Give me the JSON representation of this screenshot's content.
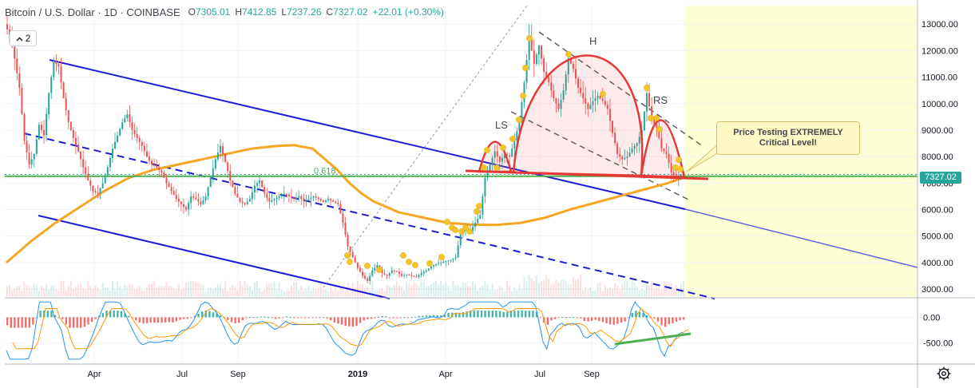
{
  "header": {
    "symbol": "Bitcoin / U.S. Dollar · 1D · COINBASE",
    "open_label": "O",
    "open": "7305.01",
    "high_label": "H",
    "high": "7412.85",
    "low_label": "L",
    "low": "7237.26",
    "close_label": "C",
    "close": "7327.02",
    "change": "+22.01 (+0.30%)"
  },
  "indicator_toggle": {
    "count": "2",
    "icon": "chevron-up-icon"
  },
  "settings": {
    "icon": "gear-icon"
  },
  "colors": {
    "up": "#26a69a",
    "down": "#ef5350",
    "channel": "#1c1cd6",
    "ma": "#f5a623",
    "fib": "#4caf50",
    "pattern": "#e53935",
    "projection_zone": "#ffffd6",
    "macd_line": "#2196f3",
    "signal_line": "#ff9800"
  },
  "annotations": {
    "left_shoulder": "LS",
    "head": "H",
    "right_shoulder": "RS",
    "fib_label": "0.618",
    "callout_line1": "Price Testing EXTREMELY",
    "callout_line2": "Critical Level!"
  },
  "last_price_tag": "7327.02",
  "chart_data": {
    "type": "line",
    "price_axis": {
      "ticks": [
        "13000.00",
        "12000.00",
        "11000.00",
        "10000.00",
        "9000.00",
        "8000.00",
        "7000.00",
        "6000.00",
        "5000.00",
        "4000.00",
        "3000.00"
      ],
      "range": [
        2700,
        13700
      ]
    },
    "indicator_axis": {
      "ticks": [
        "0.00",
        "-500.00"
      ],
      "range": [
        -900,
        350
      ]
    },
    "time_axis": {
      "ticks": [
        "Apr",
        "Jul",
        "Sep",
        "2019",
        "Apr",
        "Jul",
        "Sep"
      ]
    },
    "fib_level": 7260,
    "close_series": [
      [
        0,
        13000
      ],
      [
        4,
        12600
      ],
      [
        8,
        11700
      ],
      [
        12,
        10600
      ],
      [
        16,
        8600
      ],
      [
        20,
        7700
      ],
      [
        24,
        8100
      ],
      [
        28,
        9200
      ],
      [
        32,
        8800
      ],
      [
        36,
        10400
      ],
      [
        40,
        11600
      ],
      [
        44,
        11400
      ],
      [
        48,
        10200
      ],
      [
        52,
        9300
      ],
      [
        56,
        8700
      ],
      [
        60,
        8200
      ],
      [
        64,
        7600
      ],
      [
        68,
        7100
      ],
      [
        72,
        6700
      ],
      [
        76,
        6600
      ],
      [
        80,
        7000
      ],
      [
        84,
        7600
      ],
      [
        88,
        8300
      ],
      [
        92,
        8800
      ],
      [
        96,
        9300
      ],
      [
        100,
        9600
      ],
      [
        104,
        9000
      ],
      [
        108,
        8700
      ],
      [
        112,
        8400
      ],
      [
        116,
        8000
      ],
      [
        120,
        7700
      ],
      [
        124,
        7600
      ],
      [
        128,
        7400
      ],
      [
        132,
        7000
      ],
      [
        136,
        6700
      ],
      [
        140,
        6400
      ],
      [
        144,
        6200
      ],
      [
        148,
        6000
      ],
      [
        152,
        6500
      ],
      [
        156,
        6400
      ],
      [
        160,
        6200
      ],
      [
        164,
        6500
      ],
      [
        168,
        7200
      ],
      [
        172,
        7900
      ],
      [
        176,
        8400
      ],
      [
        180,
        7800
      ],
      [
        184,
        7100
      ],
      [
        188,
        6600
      ],
      [
        192,
        6300
      ],
      [
        196,
        6200
      ],
      [
        200,
        6400
      ],
      [
        204,
        6900
      ],
      [
        208,
        7100
      ],
      [
        212,
        6600
      ],
      [
        216,
        6300
      ],
      [
        220,
        6400
      ],
      [
        224,
        6500
      ],
      [
        228,
        6600
      ],
      [
        232,
        6500
      ],
      [
        236,
        6400
      ],
      [
        240,
        6500
      ],
      [
        244,
        6300
      ],
      [
        248,
        6400
      ],
      [
        252,
        6500
      ],
      [
        256,
        6400
      ],
      [
        260,
        6300
      ],
      [
        264,
        6400
      ],
      [
        268,
        6300
      ],
      [
        272,
        6200
      ],
      [
        276,
        5500
      ],
      [
        280,
        4600
      ],
      [
        284,
        4200
      ],
      [
        288,
        3800
      ],
      [
        292,
        3500
      ],
      [
        296,
        3300
      ],
      [
        300,
        3700
      ],
      [
        304,
        3900
      ],
      [
        308,
        3600
      ],
      [
        312,
        3500
      ],
      [
        316,
        3700
      ],
      [
        320,
        3650
      ],
      [
        324,
        3500
      ],
      [
        328,
        3550
      ],
      [
        332,
        3500
      ],
      [
        336,
        3450
      ],
      [
        340,
        3600
      ],
      [
        344,
        3700
      ],
      [
        348,
        3850
      ],
      [
        352,
        3950
      ],
      [
        356,
        4000
      ],
      [
        360,
        4050
      ],
      [
        364,
        4100
      ],
      [
        368,
        4200
      ],
      [
        372,
        5100
      ],
      [
        376,
        5300
      ],
      [
        380,
        5200
      ],
      [
        384,
        5500
      ],
      [
        388,
        5800
      ],
      [
        392,
        7200
      ],
      [
        396,
        7700
      ],
      [
        400,
        8200
      ],
      [
        404,
        7800
      ],
      [
        408,
        8100
      ],
      [
        412,
        8000
      ],
      [
        416,
        8600
      ],
      [
        420,
        9300
      ],
      [
        424,
        10800
      ],
      [
        428,
        12500
      ],
      [
        432,
        11500
      ],
      [
        436,
        12200
      ],
      [
        440,
        11200
      ],
      [
        444,
        10800
      ],
      [
        448,
        10200
      ],
      [
        452,
        9800
      ],
      [
        456,
        10500
      ],
      [
        460,
        11700
      ],
      [
        464,
        11300
      ],
      [
        468,
        10600
      ],
      [
        472,
        10200
      ],
      [
        476,
        9800
      ],
      [
        480,
        10100
      ],
      [
        484,
        10300
      ],
      [
        488,
        10100
      ],
      [
        492,
        9800
      ],
      [
        496,
        8900
      ],
      [
        500,
        8100
      ],
      [
        504,
        7900
      ],
      [
        508,
        8000
      ],
      [
        512,
        8300
      ],
      [
        516,
        8500
      ],
      [
        520,
        9000
      ],
      [
        524,
        10400
      ],
      [
        528,
        9400
      ],
      [
        532,
        9100
      ],
      [
        536,
        8300
      ],
      [
        540,
        8100
      ],
      [
        544,
        7400
      ],
      [
        548,
        7200
      ],
      [
        552,
        7327
      ]
    ],
    "ma_series": [
      [
        0,
        4000
      ],
      [
        20,
        4800
      ],
      [
        40,
        5500
      ],
      [
        60,
        6100
      ],
      [
        80,
        6700
      ],
      [
        100,
        7200
      ],
      [
        120,
        7500
      ],
      [
        140,
        7700
      ],
      [
        160,
        7900
      ],
      [
        180,
        8100
      ],
      [
        200,
        8300
      ],
      [
        220,
        8400
      ],
      [
        235,
        8430
      ],
      [
        250,
        8300
      ],
      [
        270,
        7500
      ],
      [
        280,
        7000
      ],
      [
        290,
        6600
      ],
      [
        300,
        6300
      ],
      [
        320,
        5900
      ],
      [
        340,
        5700
      ],
      [
        360,
        5500
      ],
      [
        380,
        5430
      ],
      [
        400,
        5420
      ],
      [
        420,
        5500
      ],
      [
        440,
        5700
      ],
      [
        460,
        6000
      ],
      [
        480,
        6250
      ],
      [
        500,
        6500
      ],
      [
        520,
        6750
      ],
      [
        540,
        7000
      ],
      [
        552,
        7200
      ]
    ]
  }
}
